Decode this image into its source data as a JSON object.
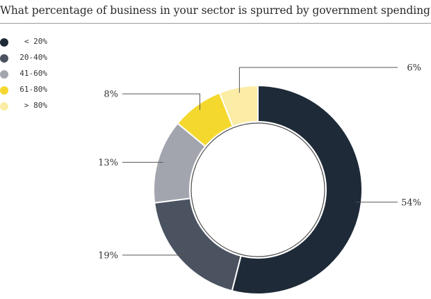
{
  "chart_data": {
    "type": "pie",
    "title": "What percentage of business in your sector is spurred by government spending?",
    "categories": [
      "< 20%",
      "20-40%",
      "41-60%",
      "61-80%",
      "> 80%"
    ],
    "values": [
      54,
      19,
      13,
      8,
      6
    ],
    "labels": [
      "54%",
      "19%",
      "13%",
      "8%",
      "6%"
    ],
    "colors": [
      "#1f2a38",
      "#4b5361",
      "#a3a5ae",
      "#f4d82e",
      "#fbeca6"
    ],
    "donut": true,
    "legend_position": "left"
  }
}
